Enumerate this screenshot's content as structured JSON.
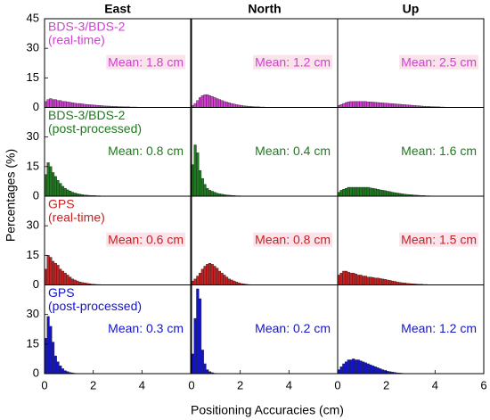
{
  "figure": {
    "xlabel": "Positioning Accuracies (cm)",
    "ylabel": "Percentages (%)"
  },
  "chart_data": [
    {
      "type": "histogram",
      "title": "East",
      "label": [
        "BDS-3/BDS-2",
        "(real-time)"
      ],
      "annotation": "Mean: 1.8 cm",
      "color": "#d23fd2",
      "highlight": true,
      "bins": [
        0,
        0.1,
        0.2,
        0.3,
        0.4,
        0.5,
        0.6,
        0.7,
        0.8,
        0.9,
        1,
        1.1,
        1.2,
        1.3,
        1.4,
        1.5,
        1.6,
        1.7,
        1.8,
        1.9,
        2,
        2.1,
        2.2,
        2.3,
        2.4,
        2.5,
        2.6,
        2.7,
        2.8,
        2.9,
        3,
        3.1,
        3.2,
        3.3,
        3.4,
        3.5,
        3.6,
        3.7,
        3.8,
        3.9,
        4
      ],
      "values": [
        3,
        4,
        4.5,
        4,
        4,
        3.5,
        3.5,
        3,
        3,
        2.8,
        2.6,
        2.4,
        2.2,
        2,
        2,
        1.8,
        1.6,
        1.5,
        1.4,
        1.3,
        1.2,
        1.1,
        1,
        0.9,
        0.8,
        0.7,
        0.7,
        0.6,
        0.5,
        0.5,
        0.4,
        0.4,
        0.3,
        0.3,
        0.3,
        0.2,
        0.2,
        0.2,
        0.1,
        0.1
      ],
      "xlim": [
        0,
        6
      ],
      "ylim": [
        0,
        45
      ],
      "yticks": [
        0,
        15,
        30,
        45
      ]
    },
    {
      "type": "histogram",
      "title": "North",
      "annotation": "Mean: 1.2 cm",
      "color": "#d23fd2",
      "highlight": true,
      "bins": [
        0,
        0.1,
        0.2,
        0.3,
        0.4,
        0.5,
        0.6,
        0.7,
        0.8,
        0.9,
        1,
        1.1,
        1.2,
        1.3,
        1.4,
        1.5,
        1.6,
        1.7,
        1.8,
        1.9,
        2,
        2.1,
        2.2,
        2.3,
        2.4,
        2.5,
        2.6,
        2.7,
        2.8,
        2.9,
        3
      ],
      "values": [
        1,
        2,
        3.5,
        5,
        6,
        6.5,
        6.5,
        6,
        5.5,
        5,
        4.5,
        4,
        3.5,
        3,
        2.7,
        2.4,
        2,
        1.7,
        1.4,
        1.2,
        1,
        0.8,
        0.7,
        0.6,
        0.5,
        0.4,
        0.3,
        0.3,
        0.2,
        0.2
      ],
      "xlim": [
        0,
        6
      ],
      "ylim": [
        0,
        45
      ]
    },
    {
      "type": "histogram",
      "title": "Up",
      "annotation": "Mean: 2.5 cm",
      "color": "#d23fd2",
      "highlight": true,
      "bins": [
        0,
        0.1,
        0.2,
        0.3,
        0.4,
        0.5,
        0.6,
        0.7,
        0.8,
        0.9,
        1,
        1.1,
        1.2,
        1.3,
        1.4,
        1.5,
        1.6,
        1.7,
        1.8,
        1.9,
        2,
        2.1,
        2.2,
        2.3,
        2.4,
        2.5,
        2.6,
        2.7,
        2.8,
        2.9,
        3,
        3.1,
        3.2,
        3.3,
        3.4,
        3.5,
        3.6,
        3.7,
        3.8,
        3.9,
        4,
        4.1,
        4.2,
        4.3,
        4.4,
        4.5
      ],
      "values": [
        1,
        1.5,
        2,
        2.5,
        2.8,
        3,
        3,
        3,
        3,
        3,
        3,
        3,
        2.8,
        2.8,
        2.7,
        2.6,
        2.5,
        2.4,
        2.3,
        2.2,
        2.1,
        2,
        1.9,
        1.8,
        1.7,
        1.6,
        1.5,
        1.4,
        1.3,
        1.2,
        1.1,
        1,
        0.9,
        0.8,
        0.7,
        0.6,
        0.5,
        0.5,
        0.4,
        0.4,
        0.3,
        0.3,
        0.2,
        0.2,
        0.1
      ],
      "xlim": [
        0,
        6
      ],
      "ylim": [
        0,
        45
      ]
    },
    {
      "type": "histogram",
      "label": [
        "BDS-3/BDS-2",
        "(post-processed)"
      ],
      "annotation": "Mean: 0.8 cm",
      "color": "#1f7a1f",
      "highlight": false,
      "bins": [
        0,
        0.1,
        0.2,
        0.3,
        0.4,
        0.5,
        0.6,
        0.7,
        0.8,
        0.9,
        1,
        1.1,
        1.2,
        1.3,
        1.4,
        1.5,
        1.6,
        1.7,
        1.8,
        1.9,
        2,
        2.1,
        2.2,
        2.3,
        2.4,
        2.5,
        2.6,
        2.7,
        2.8,
        2.9,
        3
      ],
      "values": [
        11,
        17,
        15,
        12,
        10,
        8,
        6.5,
        5,
        4,
        3.2,
        2.6,
        2,
        1.6,
        1.3,
        1,
        0.8,
        0.6,
        0.5,
        0.4,
        0.3,
        0.3,
        0.2,
        0.2,
        0.1,
        0.1,
        0.1,
        0,
        0,
        0,
        0
      ],
      "xlim": [
        0,
        6
      ],
      "ylim": [
        0,
        45
      ],
      "yticks": [
        0,
        15,
        30
      ]
    },
    {
      "type": "histogram",
      "annotation": "Mean: 0.4 cm",
      "color": "#1f7a1f",
      "highlight": false,
      "bins": [
        0,
        0.1,
        0.2,
        0.3,
        0.4,
        0.5,
        0.6,
        0.7,
        0.8,
        0.9,
        1,
        1.1,
        1.2,
        1.3,
        1.4,
        1.5,
        1.6,
        1.7,
        1.8,
        1.9,
        2,
        2.1,
        2.2,
        2.3,
        2.4,
        2.5,
        2.6,
        2.7,
        2.8,
        2.9,
        3
      ],
      "values": [
        16,
        26,
        22,
        13,
        9,
        6,
        4,
        3,
        2.5,
        2,
        1.5,
        1.2,
        1,
        0.8,
        0.6,
        0.5,
        0.4,
        0.3,
        0.2,
        0.2,
        0.1,
        0.1,
        0,
        0,
        0,
        0,
        0,
        0,
        0,
        0
      ],
      "xlim": [
        0,
        6
      ],
      "ylim": [
        0,
        45
      ]
    },
    {
      "type": "histogram",
      "annotation": "Mean: 1.6 cm",
      "color": "#1f7a1f",
      "highlight": false,
      "bins": [
        0,
        0.1,
        0.2,
        0.3,
        0.4,
        0.5,
        0.6,
        0.7,
        0.8,
        0.9,
        1,
        1.1,
        1.2,
        1.3,
        1.4,
        1.5,
        1.6,
        1.7,
        1.8,
        1.9,
        2,
        2.1,
        2.2,
        2.3,
        2.4,
        2.5,
        2.6,
        2.7,
        2.8,
        2.9,
        3,
        3.1,
        3.2,
        3.3,
        3.4,
        3.5,
        3.6,
        3.7,
        3.8,
        3.9,
        4,
        4.1,
        4.2,
        4.3,
        4.4,
        4.5
      ],
      "values": [
        2,
        3,
        3.5,
        4,
        4.5,
        4.5,
        4.5,
        4.5,
        4.5,
        4.5,
        4.5,
        4.5,
        4.5,
        4.2,
        4,
        3.8,
        3.5,
        3.2,
        3,
        2.8,
        2.5,
        2.3,
        2,
        1.8,
        1.6,
        1.4,
        1.2,
        1,
        0.9,
        0.8,
        0.7,
        0.6,
        0.5,
        0.4,
        0.3,
        0.3,
        0.2,
        0.2,
        0.1,
        0.1,
        0.1,
        0,
        0,
        0,
        0
      ],
      "xlim": [
        0,
        6
      ],
      "ylim": [
        0,
        45
      ]
    },
    {
      "type": "histogram",
      "label": [
        "GPS",
        "(real-time)"
      ],
      "annotation": "Mean: 0.6 cm",
      "color": "#c42222",
      "highlight": true,
      "bins": [
        0,
        0.1,
        0.2,
        0.3,
        0.4,
        0.5,
        0.6,
        0.7,
        0.8,
        0.9,
        1,
        1.1,
        1.2,
        1.3,
        1.4,
        1.5,
        1.6,
        1.7,
        1.8,
        1.9,
        2,
        2.1,
        2.2,
        2.3,
        2.4,
        2.5,
        2.6,
        2.7,
        2.8,
        2.9,
        3
      ],
      "values": [
        8,
        15,
        14,
        12,
        11,
        10,
        8,
        7,
        6,
        5,
        4,
        3,
        2.5,
        2,
        1.5,
        1.2,
        1,
        0.8,
        0.6,
        0.4,
        0.3,
        0.2,
        0.2,
        0.1,
        0.1,
        0,
        0,
        0,
        0,
        0
      ],
      "xlim": [
        0,
        6
      ],
      "ylim": [
        0,
        45
      ],
      "yticks": [
        0,
        15,
        30
      ]
    },
    {
      "type": "histogram",
      "annotation": "Mean: 0.8 cm",
      "color": "#c42222",
      "highlight": true,
      "bins": [
        0,
        0.1,
        0.2,
        0.3,
        0.4,
        0.5,
        0.6,
        0.7,
        0.8,
        0.9,
        1,
        1.1,
        1.2,
        1.3,
        1.4,
        1.5,
        1.6,
        1.7,
        1.8,
        1.9,
        2,
        2.1,
        2.2,
        2.3,
        2.4,
        2.5,
        2.6,
        2.7,
        2.8,
        2.9,
        3
      ],
      "values": [
        2,
        3,
        4.5,
        6,
        8,
        9.5,
        10.5,
        11,
        10.5,
        9.5,
        8.5,
        7,
        6,
        5,
        4,
        3,
        2.5,
        2,
        1.5,
        1,
        0.7,
        0.5,
        0.3,
        0.2,
        0.1,
        0,
        0,
        0,
        0,
        0
      ],
      "xlim": [
        0,
        6
      ],
      "ylim": [
        0,
        45
      ]
    },
    {
      "type": "histogram",
      "annotation": "Mean: 1.5 cm",
      "color": "#c42222",
      "highlight": true,
      "bins": [
        0,
        0.1,
        0.2,
        0.3,
        0.4,
        0.5,
        0.6,
        0.7,
        0.8,
        0.9,
        1,
        1.1,
        1.2,
        1.3,
        1.4,
        1.5,
        1.6,
        1.7,
        1.8,
        1.9,
        2,
        2.1,
        2.2,
        2.3,
        2.4,
        2.5,
        2.6,
        2.7,
        2.8,
        2.9,
        3,
        3.1,
        3.2,
        3.3,
        3.4,
        3.5,
        3.6,
        3.7,
        3.8,
        3.9,
        4,
        4.1,
        4.2,
        4.3,
        4.4,
        4.5
      ],
      "values": [
        5,
        6,
        7,
        7,
        6.5,
        6,
        6,
        5.5,
        5,
        5,
        4.5,
        4.5,
        4,
        4,
        3.8,
        3.5,
        3.5,
        3.2,
        3,
        2.8,
        2.5,
        2.3,
        2,
        1.8,
        1.5,
        1.3,
        1.1,
        1,
        0.8,
        0.7,
        0.6,
        0.5,
        0.4,
        0.3,
        0.3,
        0.2,
        0.2,
        0.1,
        0.1,
        0,
        0,
        0,
        0,
        0,
        0
      ],
      "xlim": [
        0,
        6
      ],
      "ylim": [
        0,
        45
      ]
    },
    {
      "type": "histogram",
      "label": [
        "GPS",
        "(post-processed)"
      ],
      "annotation": "Mean: 0.3 cm",
      "color": "#1414c8",
      "highlight": false,
      "bins": [
        0,
        0.1,
        0.2,
        0.3,
        0.4,
        0.5,
        0.6,
        0.7,
        0.8,
        0.9,
        1,
        1.1,
        1.2,
        1.3,
        1.4,
        1.5,
        1.6,
        1.7,
        1.8,
        1.9,
        2,
        2.1,
        2.2,
        2.3,
        2.4,
        2.5,
        2.6,
        2.7,
        2.8,
        2.9,
        3
      ],
      "values": [
        18,
        29,
        24,
        16,
        9,
        6,
        4,
        2.5,
        1.5,
        1,
        0.6,
        0.4,
        0.2,
        0.1,
        0,
        0,
        0,
        0,
        0,
        0,
        0,
        0,
        0,
        0,
        0,
        0,
        0,
        0,
        0,
        0
      ],
      "xlim": [
        0,
        6
      ],
      "ylim": [
        0,
        45
      ],
      "yticks": [
        0,
        15,
        30
      ],
      "xticks": [
        0,
        2,
        4
      ]
    },
    {
      "type": "histogram",
      "annotation": "Mean: 0.2 cm",
      "color": "#1414c8",
      "highlight": false,
      "bins": [
        0,
        0.1,
        0.2,
        0.3,
        0.4,
        0.5,
        0.6,
        0.7,
        0.8,
        0.9,
        1,
        1.1,
        1.2,
        1.3,
        1.4,
        1.5,
        1.6,
        1.7,
        1.8,
        1.9,
        2,
        2.1,
        2.2,
        2.3,
        2.4,
        2.5,
        2.6,
        2.7,
        2.8,
        2.9,
        3
      ],
      "values": [
        10,
        28,
        43,
        38,
        12,
        5,
        2,
        1,
        0.5,
        0.2,
        0,
        0,
        0,
        0,
        0,
        0,
        0,
        0,
        0,
        0,
        0,
        0,
        0,
        0,
        0,
        0,
        0,
        0,
        0,
        0
      ],
      "xlim": [
        0,
        6
      ],
      "ylim": [
        0,
        45
      ],
      "xticks": [
        0,
        2,
        4
      ]
    },
    {
      "type": "histogram",
      "annotation": "Mean: 1.2 cm",
      "color": "#1414c8",
      "highlight": false,
      "bins": [
        0,
        0.1,
        0.2,
        0.3,
        0.4,
        0.5,
        0.6,
        0.7,
        0.8,
        0.9,
        1,
        1.1,
        1.2,
        1.3,
        1.4,
        1.5,
        1.6,
        1.7,
        1.8,
        1.9,
        2,
        2.1,
        2.2,
        2.3,
        2.4,
        2.5,
        2.6,
        2.7,
        2.8,
        2.9,
        3,
        3.1,
        3.2,
        3.3,
        3.4,
        3.5,
        3.6,
        3.7,
        3.8,
        3.9,
        4,
        4.1,
        4.2,
        4.3,
        4.4,
        4.5
      ],
      "values": [
        2,
        3.5,
        5,
        6,
        7,
        7,
        7.5,
        7,
        7,
        6.5,
        6,
        5.5,
        5,
        4.5,
        4,
        3.5,
        3,
        2.5,
        2,
        1.6,
        1.2,
        1,
        0.8,
        0.6,
        0.4,
        0.3,
        0.2,
        0.1,
        0.1,
        0,
        0,
        0,
        0,
        0,
        0,
        0,
        0,
        0,
        0,
        0,
        0,
        0,
        0,
        0,
        0
      ],
      "xlim": [
        0,
        6
      ],
      "ylim": [
        0,
        45
      ],
      "xticks": [
        0,
        2,
        4,
        6
      ]
    }
  ]
}
